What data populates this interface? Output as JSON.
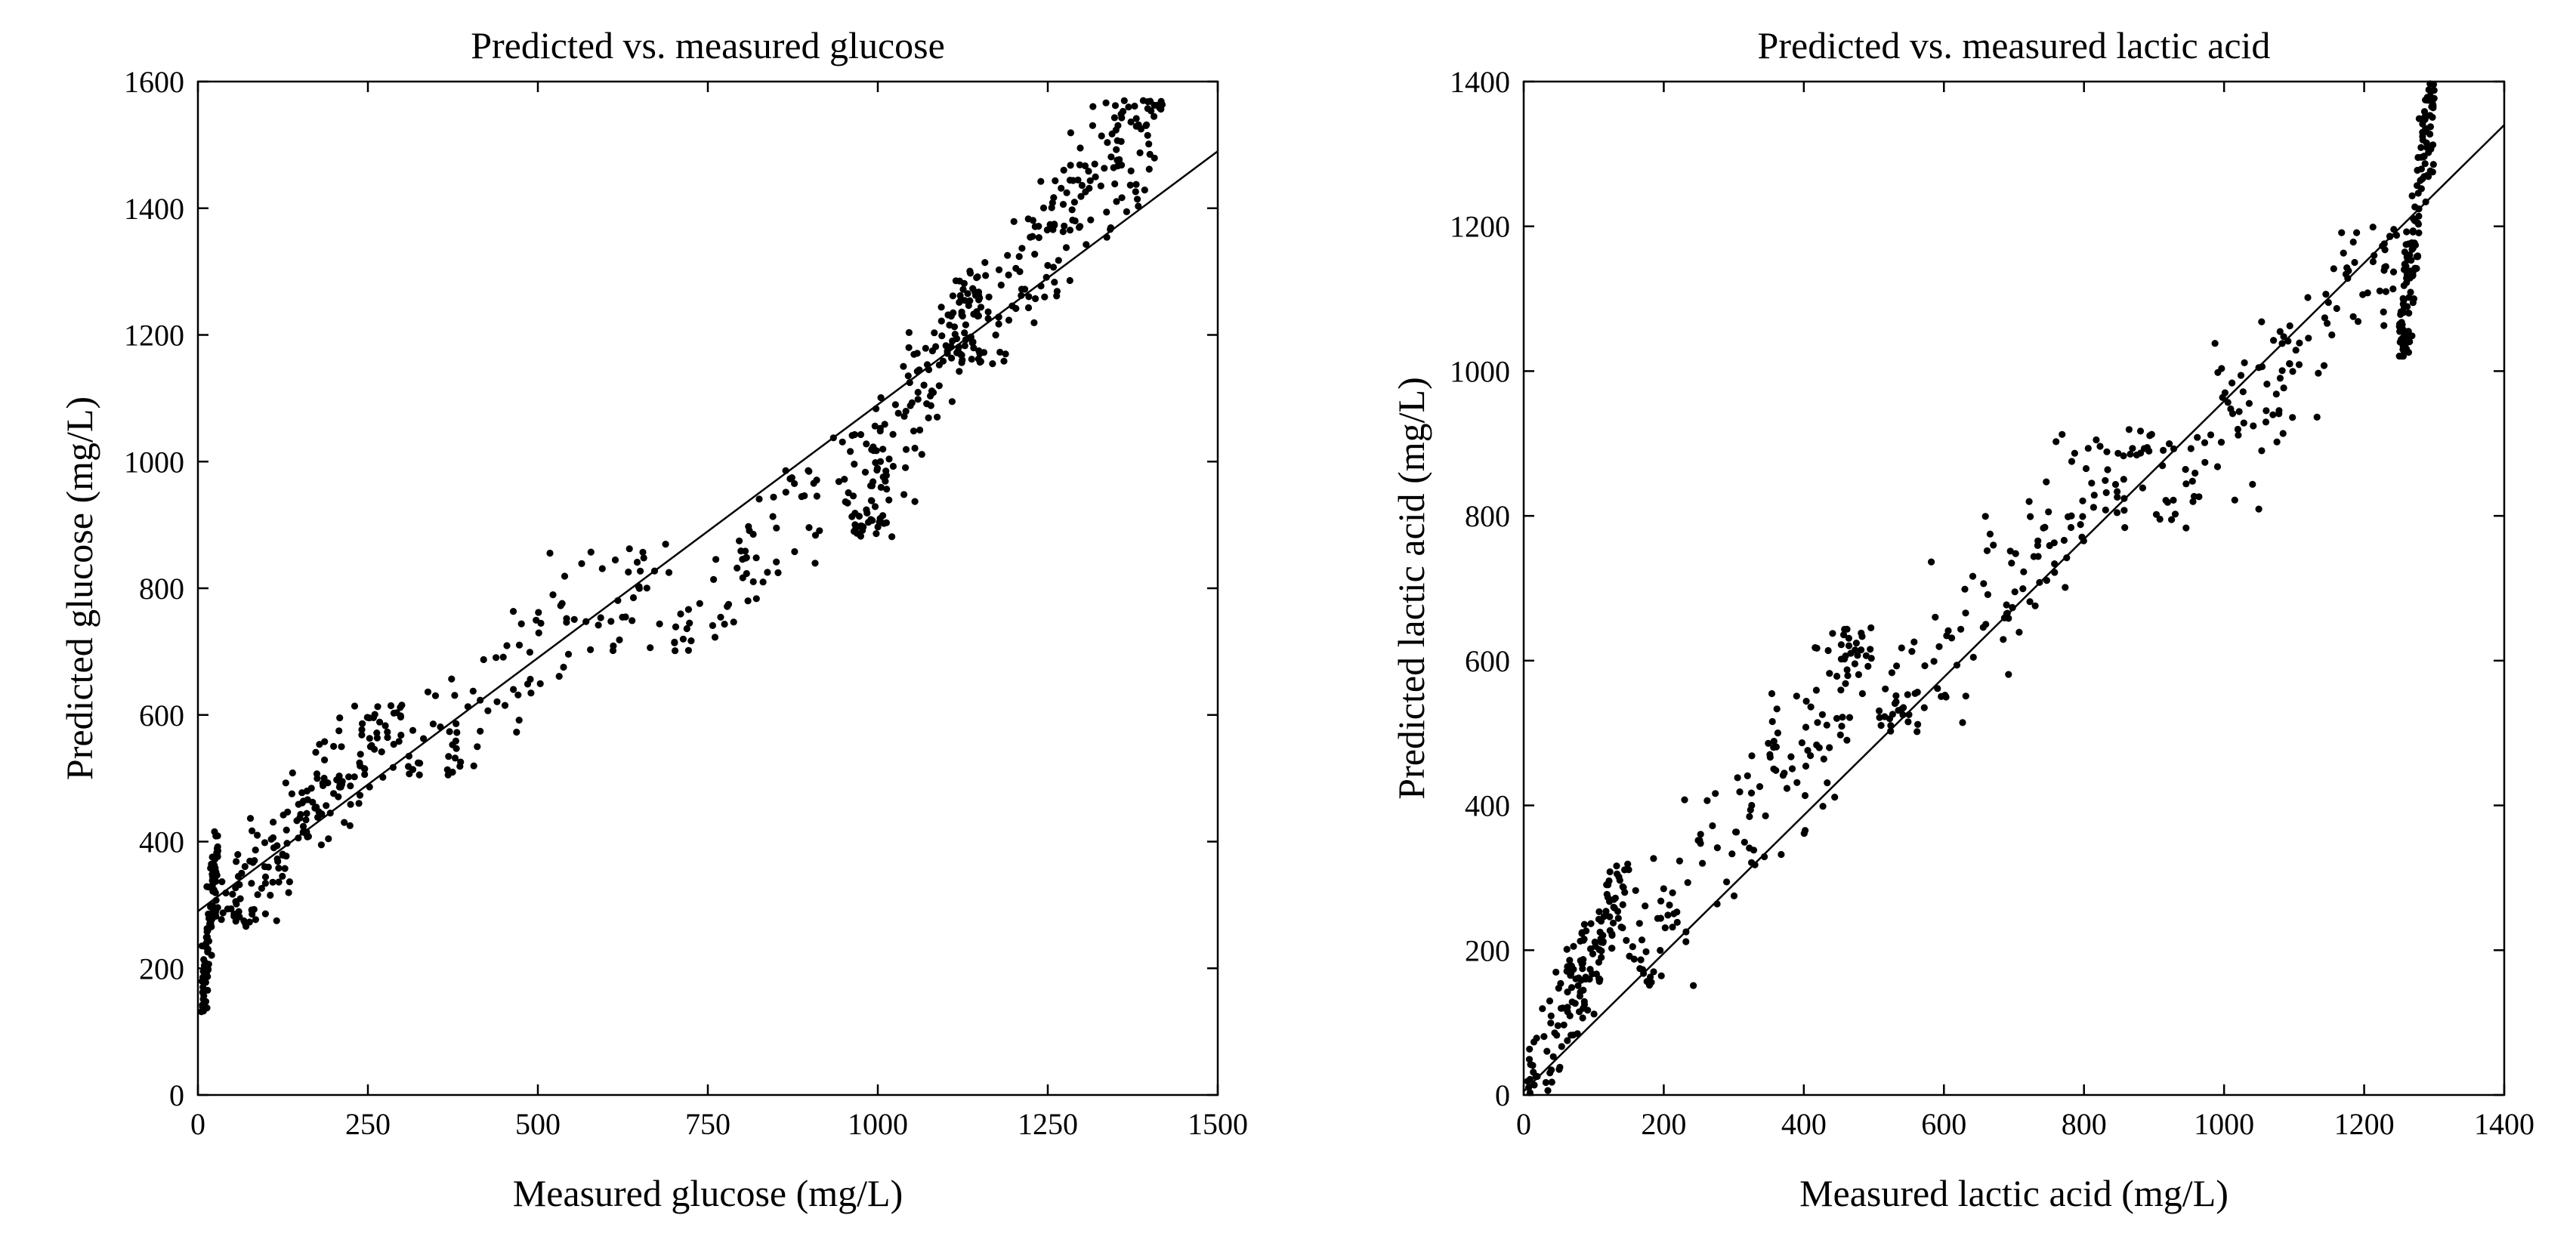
{
  "chart_data": [
    {
      "type": "scatter",
      "title": "Predicted vs. measured glucose",
      "xlabel": "Measured glucose (mg/L)",
      "ylabel": "Predicted glucose (mg/L)",
      "xlim": [
        0,
        1500
      ],
      "ylim": [
        0,
        1600
      ],
      "xticks": [
        0,
        250,
        500,
        750,
        1000,
        1250,
        1500
      ],
      "yticks": [
        0,
        200,
        400,
        600,
        800,
        1000,
        1200,
        1400,
        1600
      ],
      "grid": false,
      "legend": "none",
      "fit_line": [
        [
          0,
          290
        ],
        [
          1500,
          1490
        ]
      ],
      "point_color": "#000000",
      "clusters": [
        {
          "x": [
            5,
            30
          ],
          "y": [
            130,
            420
          ],
          "n": 90
        },
        {
          "x": [
            20,
            300
          ],
          "y": [
            260,
            620
          ],
          "n": 180
        },
        {
          "x": [
            300,
            700
          ],
          "y": [
            500,
            880
          ],
          "n": 100
        },
        {
          "x": [
            700,
            1000
          ],
          "y": [
            700,
            1050
          ],
          "n": 80
        },
        {
          "x": [
            960,
            1150
          ],
          "y": [
            880,
            1300
          ],
          "n": 130
        },
        {
          "x": [
            1100,
            1420
          ],
          "y": [
            1150,
            1570
          ],
          "n": 200
        }
      ]
    },
    {
      "type": "scatter",
      "title": "Predicted vs. measured lactic acid",
      "xlabel": "Measured lactic acid (mg/L)",
      "ylabel": "Predicted lactic acid (mg/L)",
      "xlim": [
        0,
        1400
      ],
      "ylim": [
        0,
        1400
      ],
      "xticks": [
        0,
        200,
        400,
        600,
        800,
        1000,
        1200,
        1400
      ],
      "yticks": [
        0,
        200,
        400,
        600,
        800,
        1000,
        1200,
        1400
      ],
      "grid": false,
      "legend": "none",
      "fit_line": [
        [
          0,
          5
        ],
        [
          1400,
          1340
        ]
      ],
      "point_color": "#000000",
      "clusters": [
        {
          "x": [
            5,
            150
          ],
          "y": [
            0,
            320
          ],
          "n": 150
        },
        {
          "x": [
            150,
            500
          ],
          "y": [
            150,
            650
          ],
          "n": 150
        },
        {
          "x": [
            500,
            900
          ],
          "y": [
            500,
            920
          ],
          "n": 140
        },
        {
          "x": [
            900,
            1250
          ],
          "y": [
            780,
            1200
          ],
          "n": 120
        },
        {
          "x": [
            1250,
            1300
          ],
          "y": [
            1020,
            1400
          ],
          "n": 150
        }
      ]
    }
  ]
}
